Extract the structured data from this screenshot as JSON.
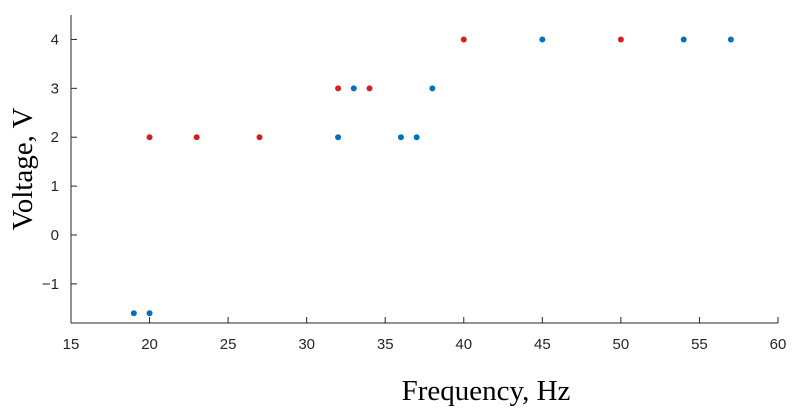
{
  "chart_data": {
    "type": "scatter",
    "title": "",
    "xlabel": "Frequency, Hz",
    "ylabel": "Voltage, V",
    "xlim": [
      15,
      60
    ],
    "ylim": [
      -1.8,
      4.5
    ],
    "xticks": [
      15,
      20,
      25,
      30,
      35,
      40,
      45,
      50,
      55,
      60
    ],
    "yticks": [
      -1,
      0,
      1,
      2,
      3,
      4
    ],
    "ytick_labels": [
      "−1",
      "0",
      "1",
      "2",
      "3",
      "4"
    ],
    "grid": false,
    "series": [
      {
        "color": "#0072BD",
        "points": [
          {
            "x": 19,
            "y": -1.6
          },
          {
            "x": 20,
            "y": -1.6
          },
          {
            "x": 32,
            "y": 2
          },
          {
            "x": 33,
            "y": 3
          },
          {
            "x": 36,
            "y": 2
          },
          {
            "x": 37,
            "y": 2
          },
          {
            "x": 38,
            "y": 3
          },
          {
            "x": 45,
            "y": 4
          },
          {
            "x": 54,
            "y": 4
          },
          {
            "x": 57,
            "y": 4
          }
        ]
      },
      {
        "color": "#D62020",
        "points": [
          {
            "x": 20,
            "y": 2
          },
          {
            "x": 23,
            "y": 2
          },
          {
            "x": 27,
            "y": 2
          },
          {
            "x": 32,
            "y": 3
          },
          {
            "x": 34,
            "y": 3
          },
          {
            "x": 40,
            "y": 4
          },
          {
            "x": 50,
            "y": 4
          }
        ]
      }
    ]
  }
}
